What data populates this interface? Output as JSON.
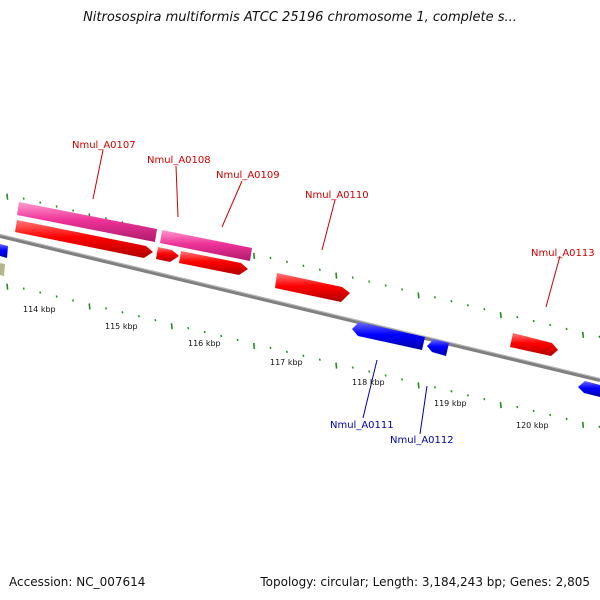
{
  "title": "Nitrosospira multiformis ATCC 25196 chromosome 1, complete s...",
  "footer": {
    "accession": "Accession: NC_007614",
    "topology": "Topology: circular; Length: 3,184,243 bp; Genes: 2,805"
  },
  "colors": {
    "backbone": "#808080",
    "tick": "#228b22",
    "forward_gene": "#ff0000",
    "reverse_gene": "#0000ff",
    "rna_gene": "#ee3399",
    "label_forward": "#cc0000",
    "label_reverse": "#0000aa"
  },
  "scale": {
    "ticks_kbp": [
      "114 kbp",
      "115 kbp",
      "116 kbp",
      "117 kbp",
      "118 kbp",
      "119 kbp",
      "120 kbp"
    ]
  },
  "genes": [
    {
      "name": "Nmul_A0107",
      "labeled": true
    },
    {
      "name": "Nmul_A0108",
      "labeled": true
    },
    {
      "name": "Nmul_A0109",
      "labeled": true
    },
    {
      "name": "Nmul_A0110",
      "labeled": true
    },
    {
      "name": "Nmul_A0111",
      "labeled": true
    },
    {
      "name": "Nmul_A0112",
      "labeled": true
    },
    {
      "name": "Nmul_A0113",
      "labeled": true
    }
  ]
}
